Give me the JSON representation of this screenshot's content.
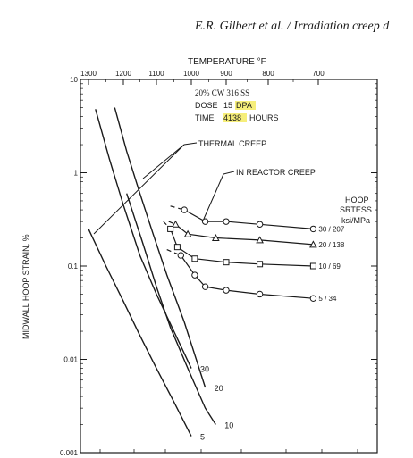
{
  "header": {
    "running_title": "E.R. Gilbert et al. / Irradiation creep d"
  },
  "figure": {
    "top_axis_label": "TEMPERATURE °F",
    "left_axis_label": "MIDWALL HOOP STRAIN, %",
    "info_lines": [
      {
        "label": "20% CW 316 SS",
        "value": ""
      },
      {
        "label": "DOSE",
        "value": "15",
        "highlight": "DPA"
      },
      {
        "label": "TIME",
        "value": "",
        "highlight": "4138",
        "suffix": "HOURS"
      }
    ],
    "thermal_label": "THERMAL CREEP",
    "reactor_label": "IN REACTOR CREEP",
    "legend_title_1": "HOOP",
    "legend_title_2": "SRTESS",
    "legend_units": "ksi/MPa"
  },
  "chart_data": {
    "type": "line",
    "y_scale": "log",
    "ylim": [
      0.001,
      10
    ],
    "x_top_ticks": [
      "1300",
      "1200",
      "1100",
      "1000",
      "900",
      "800",
      "700"
    ],
    "y_ticks": [
      "0.001",
      "0.01",
      "0.1",
      "1",
      "10"
    ],
    "thermal_creep": [
      {
        "name": "30",
        "points": [
          [
            1280,
            4.8
          ],
          [
            1240,
            1.4
          ],
          [
            1200,
            0.45
          ],
          [
            1150,
            0.13
          ],
          [
            1100,
            0.05
          ],
          [
            1050,
            0.02
          ],
          [
            1000,
            0.008
          ]
        ]
      },
      {
        "name": "20",
        "points": [
          [
            1225,
            5.0
          ],
          [
            1190,
            1.7
          ],
          [
            1150,
            0.6
          ],
          [
            1110,
            0.22
          ],
          [
            1070,
            0.08
          ],
          [
            1020,
            0.025
          ],
          [
            960,
            0.005
          ]
        ]
      },
      {
        "name": "10",
        "points": [
          [
            1190,
            0.6
          ],
          [
            1140,
            0.17
          ],
          [
            1100,
            0.06
          ],
          [
            1060,
            0.022
          ],
          [
            1010,
            0.008
          ],
          [
            960,
            0.003
          ],
          [
            930,
            0.002
          ]
        ]
      },
      {
        "name": "5",
        "points": [
          [
            1300,
            0.25
          ],
          [
            1250,
            0.1
          ],
          [
            1200,
            0.042
          ],
          [
            1150,
            0.018
          ],
          [
            1100,
            0.008
          ],
          [
            1050,
            0.0035
          ],
          [
            1000,
            0.0015
          ]
        ]
      }
    ],
    "in_reactor_creep": [
      {
        "name": "30 / 207",
        "marker": "circle",
        "points": [
          [
            1060,
            0.44
          ],
          [
            1020,
            0.4
          ],
          [
            960,
            0.3
          ],
          [
            900,
            0.3
          ],
          [
            820,
            0.28
          ],
          [
            710,
            0.25
          ]
        ]
      },
      {
        "name": "20 / 138",
        "marker": "triangle",
        "points": [
          [
            1065,
            0.3
          ],
          [
            1045,
            0.28
          ],
          [
            1010,
            0.22
          ],
          [
            930,
            0.2
          ],
          [
            820,
            0.19
          ],
          [
            710,
            0.17
          ]
        ]
      },
      {
        "name": "10 / 69",
        "marker": "square",
        "points": [
          [
            1080,
            0.3
          ],
          [
            1060,
            0.25
          ],
          [
            1040,
            0.16
          ],
          [
            990,
            0.12
          ],
          [
            900,
            0.11
          ],
          [
            820,
            0.105
          ],
          [
            710,
            0.1
          ]
        ]
      },
      {
        "name": "5 / 34",
        "marker": "circle",
        "points": [
          [
            1070,
            0.15
          ],
          [
            1030,
            0.13
          ],
          [
            990,
            0.08
          ],
          [
            960,
            0.06
          ],
          [
            900,
            0.055
          ],
          [
            820,
            0.05
          ],
          [
            710,
            0.045
          ]
        ]
      }
    ]
  }
}
